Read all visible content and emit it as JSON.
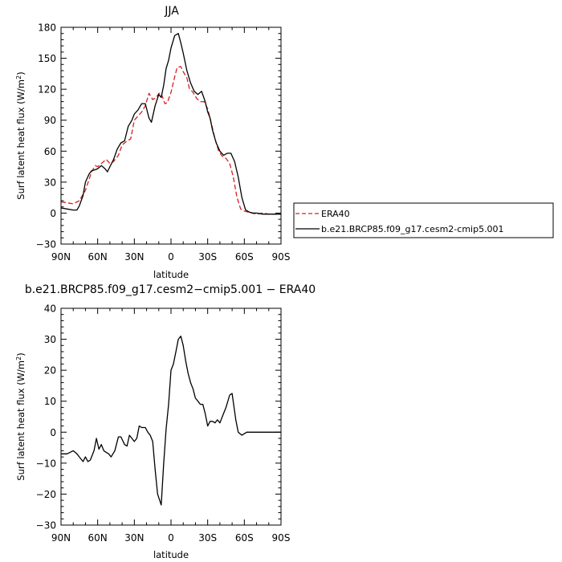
{
  "chart_data": [
    {
      "type": "line",
      "title": "JJA",
      "xlabel": "latitude",
      "ylabel": "Surf latent heat flux (W/m",
      "ylabel_sup": "2",
      "ylabel_end": ")",
      "xlim": [
        90,
        -90
      ],
      "ylim": [
        -30,
        180
      ],
      "xticks": [
        90,
        60,
        30,
        0,
        -30,
        -60,
        -90
      ],
      "xticklabels": [
        "90N",
        "60N",
        "30N",
        "0",
        "30S",
        "60S",
        "90S"
      ],
      "yticks": [
        -30,
        0,
        30,
        60,
        90,
        120,
        150,
        180
      ],
      "yticklabels": [
        "−30",
        "0",
        "30",
        "60",
        "90",
        "120",
        "150",
        "180"
      ],
      "legend": "outside-right",
      "series": [
        {
          "name": "ERA40",
          "color": "#d62020",
          "dash": "dashed",
          "x": [
            90,
            85,
            80,
            75,
            70,
            65,
            62,
            60,
            57,
            53,
            50,
            47,
            43,
            40,
            37,
            33,
            30,
            27,
            24,
            21,
            18,
            15,
            12,
            10,
            8,
            5,
            3,
            0,
            -3,
            -5,
            -8,
            -10,
            -13,
            -15,
            -18,
            -21,
            -24,
            -27,
            -30,
            -33,
            -36,
            -39,
            -42,
            -45,
            -48,
            -51,
            -54,
            -57,
            -60,
            -63,
            -66,
            -70,
            -75,
            -80,
            -85,
            -90
          ],
          "y": [
            11,
            10,
            9,
            12,
            22,
            40,
            46,
            45,
            48,
            52,
            48,
            50,
            56,
            66,
            69,
            72,
            90,
            94,
            98,
            104,
            116,
            110,
            112,
            116,
            116,
            106,
            107,
            117,
            132,
            141,
            142,
            137,
            131,
            121,
            117,
            111,
            108,
            108,
            101,
            87,
            72,
            60,
            55,
            53,
            48,
            35,
            15,
            4,
            2,
            1,
            0,
            -1,
            0,
            -1,
            -1,
            -1
          ]
        },
        {
          "name": "b.e21.BRCP85.f09_g17.cesm2-cmip5.001",
          "color": "#000000",
          "dash": "solid",
          "x": [
            90,
            85,
            80,
            77,
            75,
            72,
            70,
            67,
            65,
            62,
            60,
            57,
            54,
            52,
            50,
            47,
            44,
            41,
            38,
            35,
            32,
            30,
            27,
            24,
            21,
            18,
            16,
            13,
            10,
            8,
            6,
            4,
            2,
            0,
            -3,
            -6,
            -8,
            -10,
            -13,
            -16,
            -19,
            -22,
            -25,
            -28,
            -30,
            -32,
            -34,
            -37,
            -40,
            -43,
            -46,
            -49,
            -52,
            -55,
            -58,
            -61,
            -64,
            -67,
            -70,
            -75,
            -80,
            -85,
            -90
          ],
          "y": [
            5,
            4,
            3,
            3,
            7,
            17,
            30,
            38,
            41,
            42,
            43,
            46,
            43,
            40,
            45,
            52,
            62,
            68,
            70,
            84,
            90,
            96,
            100,
            106,
            106,
            92,
            88,
            104,
            115,
            112,
            124,
            140,
            148,
            160,
            172,
            174,
            165,
            155,
            138,
            126,
            118,
            115,
            118,
            108,
            98,
            92,
            80,
            68,
            60,
            56,
            58,
            58,
            50,
            35,
            15,
            3,
            1,
            0,
            0,
            -1,
            -1,
            -1,
            -1
          ]
        }
      ]
    },
    {
      "type": "line",
      "title": "b.e21.BRCP85.f09_g17.cesm2−cmip5.001  −  ERA40",
      "xlabel": "latitude",
      "ylabel": "Surf latent heat flux (W/m",
      "ylabel_sup": "2",
      "ylabel_end": ")",
      "xlim": [
        90,
        -90
      ],
      "ylim": [
        -30,
        40
      ],
      "xticks": [
        90,
        60,
        30,
        0,
        -30,
        -60,
        -90
      ],
      "xticklabels": [
        "90N",
        "60N",
        "30N",
        "0",
        "30S",
        "60S",
        "90S"
      ],
      "yticks": [
        -30,
        -20,
        -10,
        0,
        10,
        20,
        30,
        40
      ],
      "yticklabels": [
        "−30",
        "−20",
        "−10",
        "0",
        "10",
        "20",
        "30",
        "40"
      ],
      "series": [
        {
          "color": "#000000",
          "dash": "solid",
          "x": [
            90,
            85,
            80,
            77,
            75,
            72,
            70,
            68,
            66,
            63,
            61,
            59,
            57,
            55,
            53,
            51,
            49,
            46,
            43,
            41,
            38,
            36,
            34,
            32,
            30,
            28,
            26,
            24,
            21,
            19,
            17,
            15,
            13,
            11,
            8,
            6,
            4,
            2,
            0,
            -2,
            -4,
            -6,
            -8,
            -10,
            -12,
            -14,
            -16,
            -18,
            -20,
            -22,
            -24,
            -26,
            -28,
            -30,
            -32,
            -34,
            -36,
            -38,
            -40,
            -42,
            -45,
            -48,
            -50,
            -53,
            -55,
            -58,
            -60,
            -62,
            -64,
            -66,
            -70,
            -75,
            -80,
            -85,
            -90
          ],
          "y": [
            -7,
            -7,
            -6,
            -7,
            -8,
            -9.5,
            -8,
            -9.5,
            -9,
            -6,
            -2,
            -5.5,
            -4,
            -6,
            -6.5,
            -7,
            -8,
            -6,
            -1.5,
            -1.5,
            -4,
            -4.5,
            -1,
            -2,
            -3,
            -2,
            2,
            1.5,
            1.5,
            0,
            -1,
            -3,
            -12,
            -20,
            -23.5,
            -10,
            1,
            9,
            20,
            22,
            26,
            30,
            31,
            28,
            23,
            19,
            16,
            14,
            11,
            10,
            9,
            9,
            6,
            2,
            3.5,
            3.5,
            3,
            4,
            3,
            5,
            8,
            12,
            12.5,
            4,
            0,
            -1,
            -0.5,
            0,
            0,
            0,
            0,
            0,
            0,
            0,
            0
          ]
        }
      ]
    }
  ]
}
